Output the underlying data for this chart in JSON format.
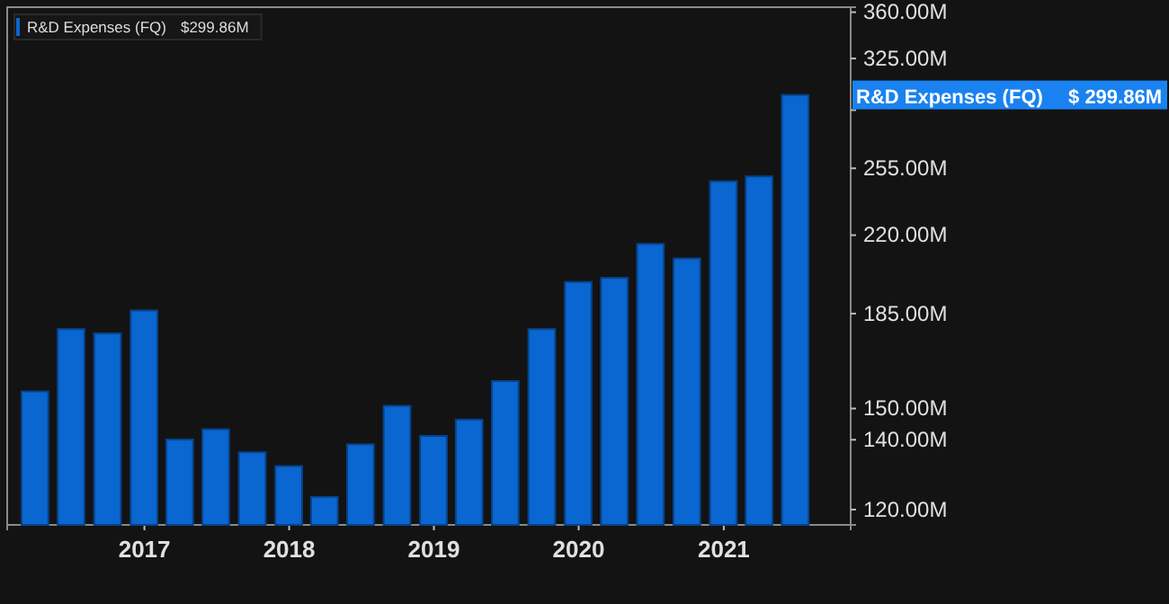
{
  "chart_data": {
    "type": "bar",
    "x": [
      "2016-03-31",
      "2016-06-30",
      "2016-09-30",
      "2016-12-31",
      "2017-03-31",
      "2017-06-30",
      "2017-09-30",
      "2017-12-31",
      "2018-03-31",
      "2018-06-30",
      "2018-09-30",
      "2018-12-31",
      "2019-03-31",
      "2019-06-30",
      "2019-09-30",
      "2019-12-31",
      "2020-03-31",
      "2020-06-30",
      "2020-09-30",
      "2020-12-31",
      "2021-03-31",
      "2021-06-30"
    ],
    "series": [
      {
        "name": "R&D Expenses (FQ)",
        "color": "#0a66d0",
        "values": [
          155.8,
          178.8,
          177.1,
          186.3,
          140.1,
          143.3,
          136.2,
          132.1,
          123.4,
          138.6,
          150.9,
          141.2,
          146.4,
          159.4,
          178.8,
          198.4,
          200.2,
          215.8,
          209.0,
          247.8,
          250.5,
          299.86
        ]
      }
    ],
    "xlim": [
      "2016-01-21",
      "2021-11-17"
    ],
    "xticks": [
      "2017",
      "2018",
      "2019",
      "2020",
      "2021"
    ],
    "log": true,
    "ylim": [
      116,
      364
    ],
    "yticks": [
      {
        "value": 120,
        "label": "120.00M"
      },
      {
        "value": 140,
        "label": "140.00M"
      },
      {
        "value": 150,
        "label": "150.00M"
      },
      {
        "value": 185,
        "label": "185.00M"
      },
      {
        "value": 220,
        "label": "220.00M"
      },
      {
        "value": 255,
        "label": "255.00M"
      },
      {
        "value": 290,
        "label": null
      },
      {
        "value": 325,
        "label": "325.00M"
      },
      {
        "value": 360,
        "label": "360.00M"
      }
    ],
    "legend": "top left",
    "annotations": [
      "$299.86M",
      "$ 299.86M"
    ]
  }
}
